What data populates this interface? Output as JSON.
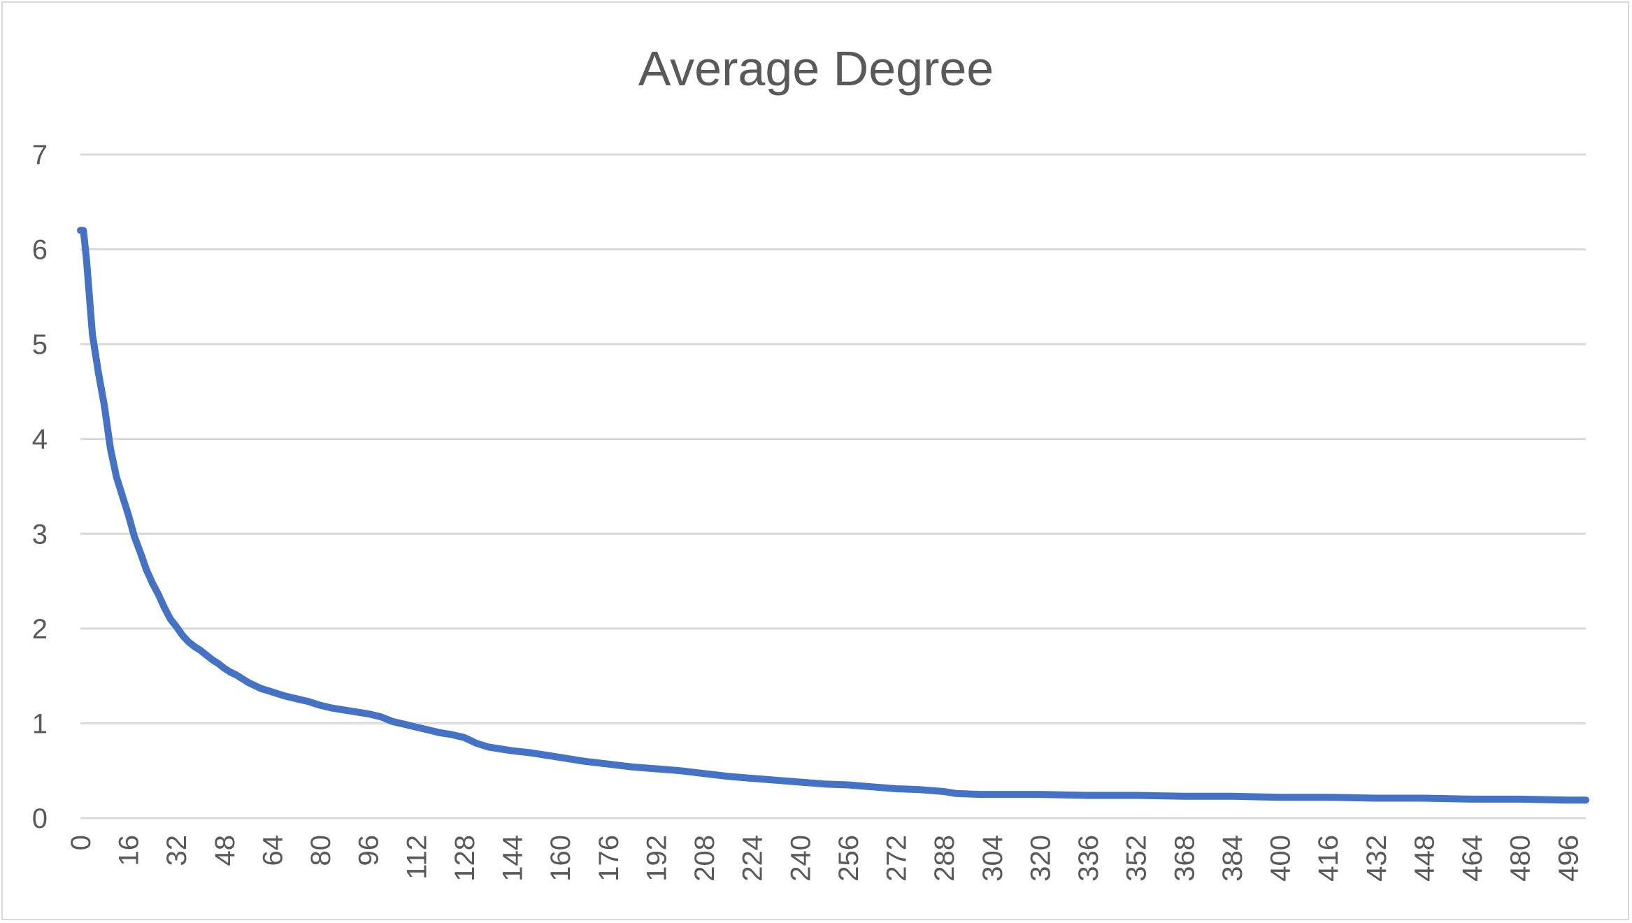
{
  "chart_data": {
    "type": "line",
    "title": "Average Degree",
    "xlabel": "",
    "ylabel": "",
    "ylim": [
      0,
      7
    ],
    "xlim": [
      0,
      502
    ],
    "y_ticks": [
      0,
      1,
      2,
      3,
      4,
      5,
      6,
      7
    ],
    "x_ticks": [
      0,
      16,
      32,
      48,
      64,
      80,
      96,
      112,
      128,
      144,
      160,
      176,
      192,
      208,
      224,
      240,
      256,
      272,
      288,
      304,
      320,
      336,
      352,
      368,
      384,
      400,
      416,
      432,
      448,
      464,
      480,
      496
    ],
    "grid": true,
    "legend": "none",
    "series": [
      {
        "color": "#4472C4",
        "x": [
          0,
          1,
          2,
          4,
          6,
          8,
          10,
          12,
          14,
          16,
          18,
          20,
          22,
          24,
          26,
          28,
          30,
          32,
          34,
          36,
          38,
          40,
          42,
          44,
          46,
          48,
          50,
          52,
          54,
          56,
          58,
          60,
          64,
          68,
          72,
          76,
          80,
          84,
          88,
          92,
          96,
          100,
          104,
          108,
          112,
          116,
          120,
          124,
          128,
          132,
          136,
          140,
          144,
          150,
          156,
          162,
          168,
          176,
          184,
          192,
          200,
          208,
          216,
          224,
          232,
          240,
          248,
          256,
          264,
          272,
          280,
          288,
          292,
          300,
          320,
          336,
          352,
          368,
          384,
          400,
          416,
          432,
          448,
          464,
          480,
          496,
          502
        ],
        "y": [
          6.2,
          6.2,
          5.9,
          5.1,
          4.7,
          4.35,
          3.9,
          3.6,
          3.4,
          3.2,
          2.97,
          2.8,
          2.62,
          2.48,
          2.36,
          2.22,
          2.1,
          2.02,
          1.93,
          1.86,
          1.81,
          1.77,
          1.72,
          1.67,
          1.63,
          1.58,
          1.54,
          1.51,
          1.47,
          1.43,
          1.4,
          1.37,
          1.33,
          1.29,
          1.26,
          1.23,
          1.19,
          1.16,
          1.14,
          1.12,
          1.1,
          1.07,
          1.02,
          0.99,
          0.96,
          0.93,
          0.9,
          0.88,
          0.85,
          0.79,
          0.75,
          0.73,
          0.71,
          0.69,
          0.66,
          0.63,
          0.6,
          0.57,
          0.54,
          0.52,
          0.5,
          0.47,
          0.44,
          0.42,
          0.4,
          0.38,
          0.36,
          0.35,
          0.33,
          0.31,
          0.3,
          0.28,
          0.26,
          0.25,
          0.25,
          0.24,
          0.24,
          0.23,
          0.23,
          0.22,
          0.22,
          0.21,
          0.21,
          0.2,
          0.2,
          0.19,
          0.19
        ]
      }
    ]
  }
}
